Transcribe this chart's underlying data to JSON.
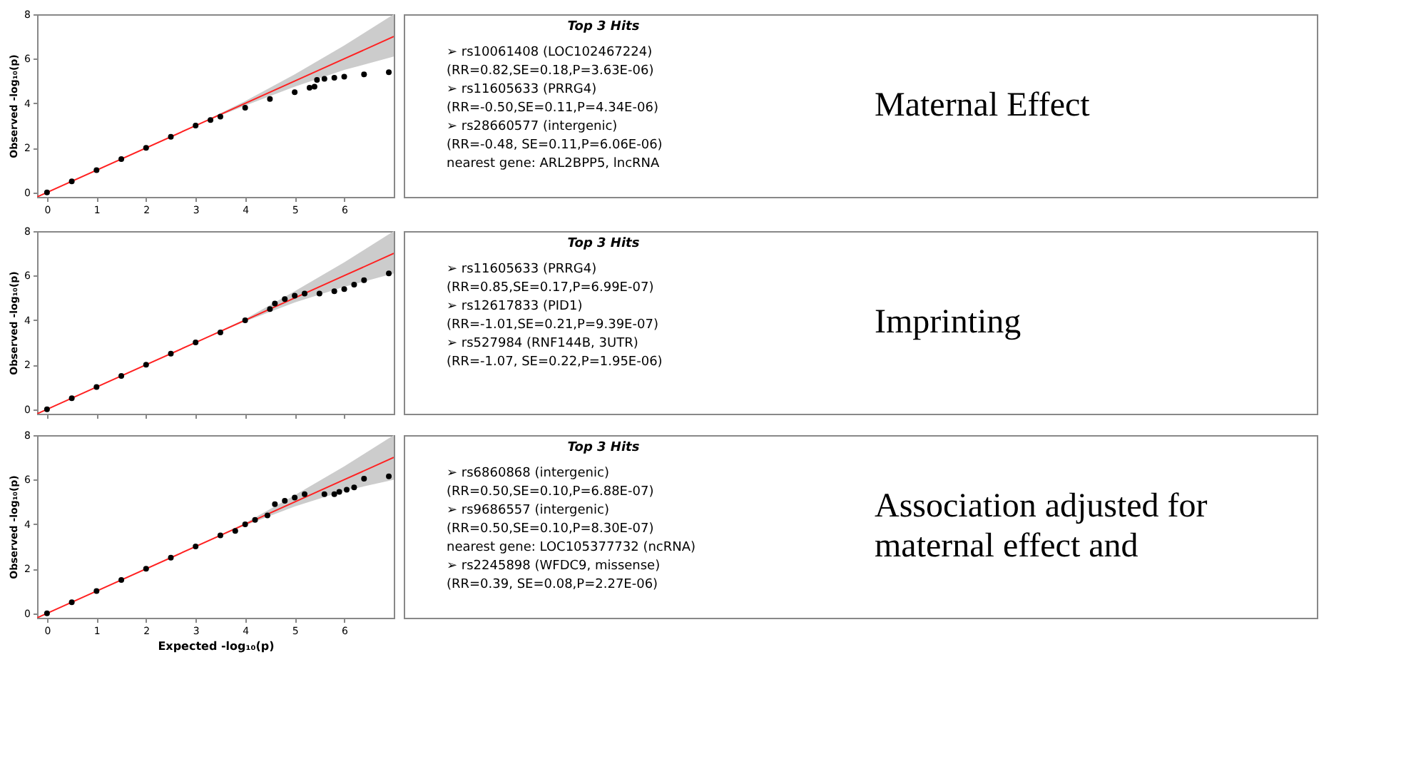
{
  "chart_data": [
    {
      "type": "scatter",
      "ylabel": "Observed  -log₁₀(p)",
      "xlim": [
        -0.2,
        7
      ],
      "ylim": [
        -0.2,
        8
      ],
      "xticks": [
        0,
        1,
        2,
        3,
        4,
        5,
        6
      ],
      "yticks": [
        0,
        2,
        4,
        6,
        8
      ],
      "grid": false,
      "series": [
        {
          "type": "line",
          "line_style": "solid",
          "marker": "none",
          "color": "#ff2020",
          "x": [
            -0.2,
            3,
            4,
            5,
            6,
            7
          ],
          "values": [
            -0.2,
            3,
            4,
            5,
            6,
            7
          ],
          "lower": [
            -0.2,
            3,
            3.9,
            4.75,
            5.5,
            6.1
          ],
          "upper": [
            -0.2,
            3,
            4.1,
            5.3,
            6.6,
            8
          ]
        },
        {
          "marker": "circle",
          "color": "#000000",
          "x": [
            0,
            0.5,
            1,
            1.5,
            2,
            2.5,
            3,
            3.3,
            3.5,
            4,
            4.5,
            5,
            5.3,
            5.4,
            5.45,
            5.6,
            5.8,
            6,
            6.4,
            6.9
          ],
          "values": [
            0,
            0.5,
            1,
            1.5,
            2,
            2.5,
            3,
            3.25,
            3.4,
            3.8,
            4.2,
            4.5,
            4.7,
            4.75,
            5.05,
            5.1,
            5.15,
            5.2,
            5.3,
            5.4
          ]
        }
      ],
      "annotations": [
        "Top 3 Hits",
        "➢ rs10061408 (LOC102467224)",
        "(RR=0.82,SE=0.18,P=3.63E-06)",
        "➢ rs11605633 (PRRG4)",
        "(RR=-0.50,SE=0.11,P=4.34E-06)",
        "➢ rs28660577 (intergenic)",
        "(RR=-0.48, SE=0.11,P=6.06E-06)",
        "nearest gene: ARL2BPP5, lncRNA",
        "Maternal Effect"
      ]
    },
    {
      "type": "scatter",
      "ylabel": "Observed  -log₁₀(p)",
      "xlim": [
        -0.2,
        7
      ],
      "ylim": [
        -0.2,
        8
      ],
      "xticks": [
        0,
        1,
        2,
        3,
        4,
        5,
        6
      ],
      "yticks": [
        0,
        2,
        4,
        6,
        8
      ],
      "grid": false,
      "tick_labels": "y",
      "series": [
        {
          "type": "line",
          "line_style": "solid",
          "marker": "none",
          "color": "#ff2020",
          "x": [
            -0.2,
            3,
            4,
            5,
            6,
            7
          ],
          "values": [
            -0.2,
            3,
            4,
            5,
            6,
            7
          ],
          "lower": [
            -0.2,
            3,
            3.95,
            4.8,
            5.5,
            6.1
          ],
          "upper": [
            -0.2,
            3,
            4.05,
            5.3,
            6.6,
            8
          ]
        },
        {
          "marker": "circle",
          "color": "#000000",
          "x": [
            0,
            0.5,
            1,
            1.5,
            2,
            2.5,
            3,
            3.5,
            4,
            4.5,
            4.6,
            4.8,
            5,
            5.2,
            5.5,
            5.8,
            6,
            6.2,
            6.4,
            6.9
          ],
          "values": [
            0,
            0.5,
            1,
            1.5,
            2,
            2.5,
            3,
            3.45,
            4,
            4.5,
            4.75,
            4.95,
            5.1,
            5.2,
            5.2,
            5.3,
            5.4,
            5.6,
            5.8,
            6.1
          ]
        }
      ],
      "annotations": [
        "Top 3 Hits",
        "➢ rs11605633 (PRRG4)",
        "(RR=0.85,SE=0.17,P=6.99E-07)",
        "➢ rs12617833 (PID1)",
        "(RR=-1.01,SE=0.21,P=9.39E-07)",
        "➢ rs527984 (RNF144B, 3UTR)",
        "(RR=-1.07, SE=0.22,P=1.95E-06)",
        "Imprinting"
      ]
    },
    {
      "type": "scatter",
      "xlabel": "Expected  -log₁₀(p)",
      "ylabel": "Observed  -log₁₀(p)",
      "xlim": [
        -0.2,
        7
      ],
      "ylim": [
        -0.2,
        8
      ],
      "xticks": [
        0,
        1,
        2,
        3,
        4,
        5,
        6
      ],
      "yticks": [
        0,
        2,
        4,
        6,
        8
      ],
      "grid": false,
      "series": [
        {
          "type": "line",
          "line_style": "solid",
          "marker": "none",
          "color": "#ff2020",
          "x": [
            -0.2,
            3,
            4,
            5,
            6,
            7
          ],
          "values": [
            -0.2,
            3,
            4,
            5,
            6,
            7
          ],
          "lower": [
            -0.2,
            3,
            3.95,
            4.8,
            5.5,
            6.0
          ],
          "upper": [
            -0.2,
            3,
            4.05,
            5.3,
            6.6,
            8
          ]
        },
        {
          "marker": "circle",
          "color": "#000000",
          "x": [
            0,
            0.5,
            1,
            1.5,
            2,
            2.5,
            3,
            3.5,
            3.8,
            4,
            4.2,
            4.45,
            4.6,
            4.8,
            5,
            5.2,
            5.6,
            5.8,
            5.9,
            6.05,
            6.2,
            6.4,
            6.9
          ],
          "values": [
            0,
            0.5,
            1,
            1.5,
            2,
            2.5,
            3,
            3.5,
            3.7,
            4,
            4.2,
            4.4,
            4.9,
            5.05,
            5.2,
            5.35,
            5.35,
            5.35,
            5.45,
            5.55,
            5.65,
            6.05,
            6.15
          ]
        }
      ],
      "annotations": [
        "Top 3 Hits",
        "➢ rs6860868 (intergenic)",
        "(RR=0.50,SE=0.10,P=6.88E-07)",
        "➢ rs9686557 (intergenic)",
        "(RR=0.50,SE=0.10,P=8.30E-07)",
        "nearest gene: LOC105377732 (ncRNA)",
        "➢ rs2245898 (WFDC9, missense)",
        "(RR=0.39, SE=0.08,P=2.27E-06)",
        "Association adjusted for maternal effect and"
      ]
    }
  ]
}
